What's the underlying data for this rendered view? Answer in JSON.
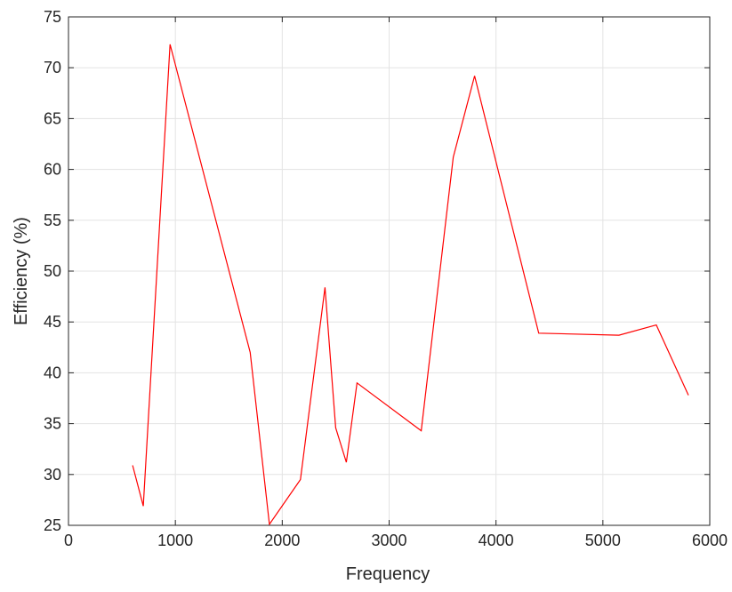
{
  "chart_data": {
    "type": "line",
    "title": "",
    "xlabel": "Frequency",
    "ylabel": "Efficiency (%)",
    "xlim": [
      0,
      6000
    ],
    "ylim": [
      25,
      75
    ],
    "xticks": [
      "0",
      "1000",
      "2000",
      "3000",
      "4000",
      "5000",
      "6000"
    ],
    "yticks": [
      "25",
      "30",
      "35",
      "40",
      "45",
      "50",
      "55",
      "60",
      "65",
      "70",
      "75"
    ],
    "grid": true,
    "legend": "none",
    "series": [
      {
        "color": "#ff0000",
        "x": [
          600,
          700,
          950,
          1700,
          1880,
          2170,
          2400,
          2500,
          2600,
          2700,
          3300,
          3600,
          3800,
          4400,
          5150,
          5500,
          5800
        ],
        "y": [
          30.9,
          26.9,
          72.3,
          42.0,
          25.1,
          29.5,
          48.4,
          34.6,
          31.2,
          39.0,
          34.3,
          61.2,
          69.2,
          43.9,
          43.7,
          44.7,
          37.8
        ]
      }
    ]
  }
}
